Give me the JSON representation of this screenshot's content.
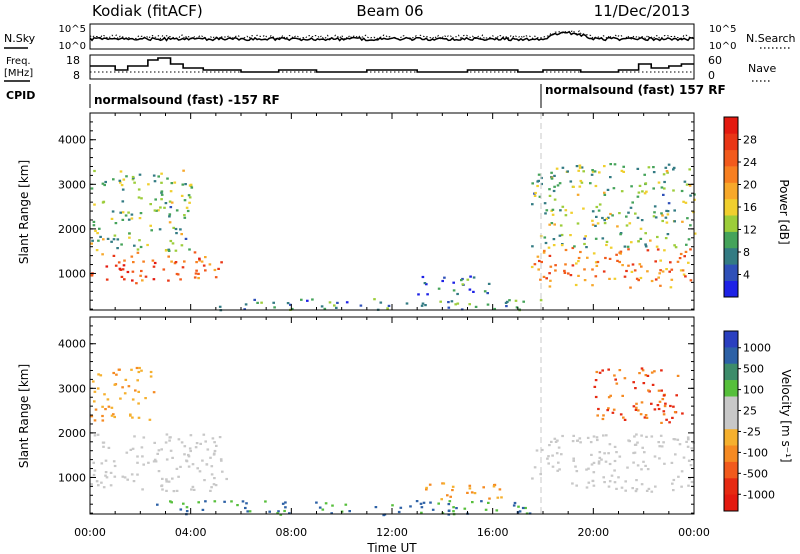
{
  "header": {
    "station": "Kodiak (fitACF)",
    "beam": "Beam 06",
    "date": "11/Dec/2013"
  },
  "panel_labels": {
    "nsky": "N.Sky",
    "nsearch": "N.Search",
    "freq": "Freq.",
    "freq_unit": "[MHz]",
    "nave": "Nave",
    "cpid": "CPID"
  },
  "noise_panel": {
    "left_ticks": [
      "10^5",
      "10^0"
    ],
    "right_ticks": [
      "10^5",
      "10^0"
    ]
  },
  "freq_panel": {
    "left_ticks": [
      "18",
      "8"
    ],
    "right_ticks": [
      "60",
      "0"
    ]
  },
  "cpid_panel": {
    "segments": [
      {
        "label": "normalsound (fast) -157 RF",
        "start_hour": 0
      },
      {
        "label": "normalsound (fast) 157 RF",
        "start_hour": 18
      }
    ]
  },
  "colorbars": {
    "power": {
      "title": "Power [dB]",
      "ticks": [
        "4",
        "8",
        "12",
        "16",
        "20",
        "24",
        "28"
      ],
      "colors": [
        "#1e22e6",
        "#2f50b8",
        "#337b83",
        "#45a35a",
        "#9ccd3a",
        "#f0cf2e",
        "#f7a82a",
        "#f77f20",
        "#f25a1c",
        "#e93616",
        "#e41a10"
      ]
    },
    "velocity": {
      "title": "Velocity [m s⁻¹]",
      "ticks": [
        "1000",
        "500",
        "100",
        "25",
        "-25",
        "-100",
        "-500",
        "-1000"
      ],
      "colors": [
        "#2a3fbf",
        "#2d61a6",
        "#3d8c6a",
        "#56bf3b",
        "#c8c8c8",
        "#c8c8c8",
        "#f5b02e",
        "#f58a22",
        "#f25a1c",
        "#e62a12",
        "#e41a10"
      ]
    }
  },
  "chart_data": [
    {
      "type": "heatmap",
      "title": "Power",
      "ylabel": "Slant Range [km]",
      "ylim": [
        180,
        4600
      ],
      "y_ticks": [
        "1000",
        "2000",
        "3000",
        "4000"
      ],
      "xlim": [
        0,
        24
      ],
      "echo_regions": [
        {
          "t0": 0.0,
          "t1": 5.2,
          "r0": 800,
          "r1": 1500,
          "power_db": 24
        },
        {
          "t0": 0.0,
          "t1": 4.0,
          "r0": 1500,
          "r1": 3400,
          "power_db": 12
        },
        {
          "t0": 5.0,
          "t1": 18.0,
          "r0": 200,
          "r1": 450,
          "power_db": 8
        },
        {
          "t0": 13.0,
          "t1": 16.0,
          "r0": 550,
          "r1": 1000,
          "power_db": 8
        },
        {
          "t0": 17.5,
          "t1": 24.0,
          "r0": 700,
          "r1": 1600,
          "power_db": 22
        },
        {
          "t0": 17.5,
          "t1": 24.0,
          "r0": 1600,
          "r1": 3500,
          "power_db": 12
        }
      ]
    },
    {
      "type": "heatmap",
      "title": "Velocity",
      "ylabel": "Slant Range [km]",
      "xlabel": "Time UT",
      "ylim": [
        180,
        4600
      ],
      "y_ticks": [
        "1000",
        "2000",
        "3000",
        "4000"
      ],
      "x_ticks": [
        "00:00",
        "04:00",
        "08:00",
        "12:00",
        "16:00",
        "20:00",
        "00:00"
      ],
      "xlim": [
        0,
        24
      ],
      "echo_regions": [
        {
          "t0": 0.0,
          "t1": 5.5,
          "r0": 700,
          "r1": 2000,
          "velocity": 0
        },
        {
          "t0": 0.0,
          "t1": 2.5,
          "r0": 2300,
          "r1": 3500,
          "velocity": -100
        },
        {
          "t0": 2.5,
          "t1": 17.5,
          "r0": 180,
          "r1": 500,
          "velocity": 100
        },
        {
          "t0": 13.0,
          "t1": 16.5,
          "r0": 500,
          "r1": 900,
          "velocity": -100
        },
        {
          "t0": 17.5,
          "t1": 24.0,
          "r0": 700,
          "r1": 2000,
          "velocity": 0
        },
        {
          "t0": 20.0,
          "t1": 23.5,
          "r0": 2200,
          "r1": 3500,
          "velocity": -500
        }
      ]
    }
  ]
}
